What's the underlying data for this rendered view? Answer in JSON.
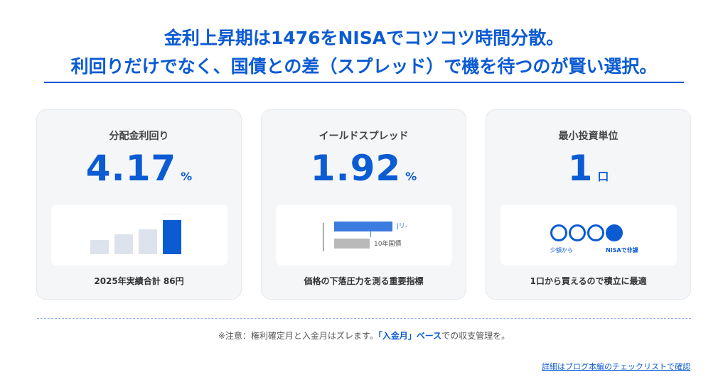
{
  "header": {
    "line1": "金利上昇期は1476をNISAでコツコツ時間分散。",
    "line2": "利回りだけでなく、国債との差（スプレッド）で機を待つのが賢い選択。"
  },
  "cards": [
    {
      "label": "分配金利回り",
      "value": "4.17",
      "unit": "%",
      "caption": "2025年実績合計 86円",
      "bars": [
        0.42,
        0.58,
        0.73,
        1.0
      ]
    },
    {
      "label": "イールドスプレッド",
      "value": "1.92",
      "unit": "%",
      "caption": "価格の下落圧力を測る重要指標",
      "legend": {
        "top": "Jリ-",
        "bottom": "10年国債"
      }
    },
    {
      "label": "最小投資単位",
      "value": "1",
      "unit": "口",
      "caption": "1口から買えるので積立に最適",
      "circle_labels": {
        "left": "少額から",
        "right": "NISAで非課"
      }
    }
  ],
  "note": {
    "prefix": "※注意：権利確定月と入金月はズレます。",
    "highlight": "「入金月」ベース",
    "suffix": "での収支管理を。"
  },
  "footer": {
    "link": "詳細はブログ本編のチェックリストで確認"
  },
  "colors": {
    "accent": "#0b5bd3",
    "card_bg": "#f4f6f8"
  }
}
